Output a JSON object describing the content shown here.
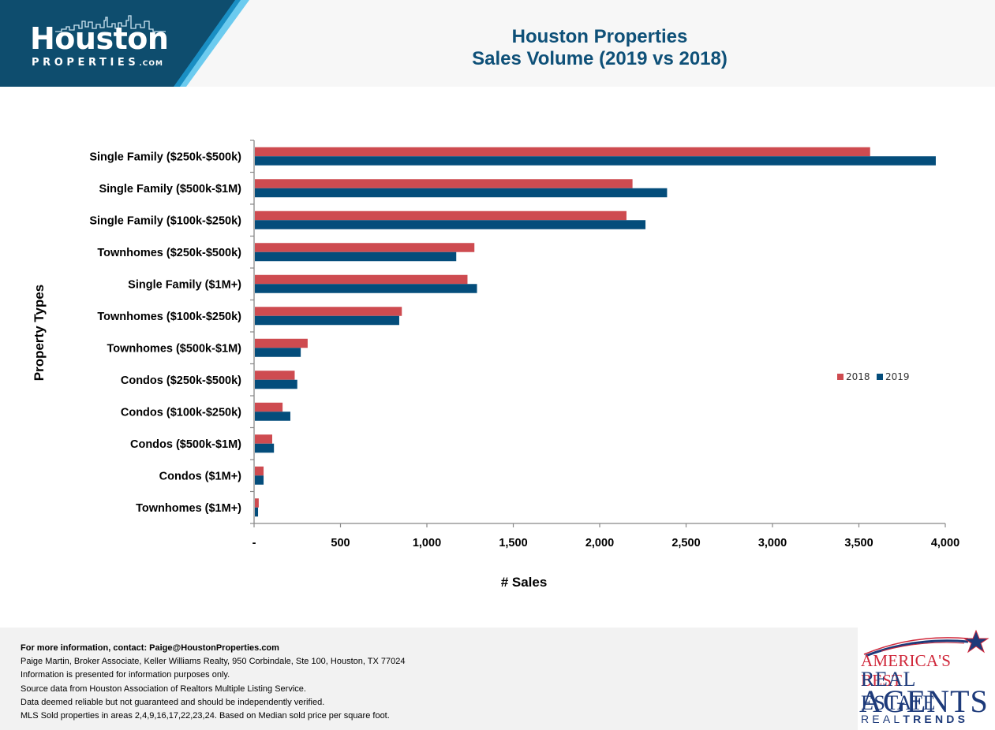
{
  "header": {
    "logo_main": "Houston",
    "logo_sub": "PROPERTIES",
    "logo_suffix": ".COM",
    "title_line1": "Houston Properties",
    "title_line2": "Sales Volume (2019 vs 2018)"
  },
  "colors": {
    "header_band": "#0e4d6e",
    "accent_light": "#6ccbef",
    "accent_mid": "#1a8fc4",
    "title": "#0e5078",
    "series_2018": "#ce4b50",
    "series_2019": "#044d7b"
  },
  "chart_data": {
    "type": "bar",
    "orientation": "horizontal",
    "title": "Houston Properties Sales Volume (2019 vs 2018)",
    "xlabel": "# Sales",
    "ylabel": "Property Types",
    "xlim": [
      0,
      4000
    ],
    "xticks": [
      0,
      500,
      1000,
      1500,
      2000,
      2500,
      3000,
      3500,
      4000
    ],
    "xtick_labels": [
      "-",
      "500",
      "1,000",
      "1,500",
      "2,000",
      "2,500",
      "3,000",
      "3,500",
      "4,000"
    ],
    "grid": false,
    "legend_position": "right",
    "categories": [
      "Single Family ($250k-$500k)",
      "Single Family ($500k-$1M)",
      "Single Family ($100k-$250k)",
      "Townhomes ($250k-$500k)",
      "Single Family ($1M+)",
      "Townhomes ($100k-$250k)",
      "Townhomes ($500k-$1M)",
      "Condos ($250k-$500k)",
      "Condos ($100k-$250k)",
      "Condos ($500k-$1M)",
      "Condos ($1M+)",
      "Townhomes ($1M+)"
    ],
    "series": [
      {
        "name": "2018",
        "color": "#ce4b50",
        "values": [
          3565,
          2190,
          2155,
          1275,
          1235,
          855,
          310,
          235,
          165,
          105,
          55,
          27
        ]
      },
      {
        "name": "2019",
        "color": "#044d7b",
        "values": [
          3945,
          2390,
          2265,
          1170,
          1290,
          840,
          270,
          250,
          210,
          115,
          55,
          23
        ]
      }
    ]
  },
  "footer": {
    "contact": "For more information, contact: Paige@HoustonProperties.com",
    "lines": [
      "Paige Martin, Broker Associate, Keller Williams Realty, 950 Corbindale, Ste 100, Houston, TX 77024",
      "Information is presented for information purposes only.",
      "Source data from Houston Association of Realtors Multiple Listing Service.",
      "Data deemed reliable but not guaranteed and should be independently verified.",
      "MLS Sold properties in areas 2,4,9,16,17,22,23,24. Based on Median sold price per square foot."
    ]
  },
  "badge": {
    "line1": "AMERICA'S BEST",
    "line2": "REAL ESTATE",
    "line3": "AGENTS",
    "line4_light": "REAL",
    "line4_bold": "TRENDS"
  }
}
